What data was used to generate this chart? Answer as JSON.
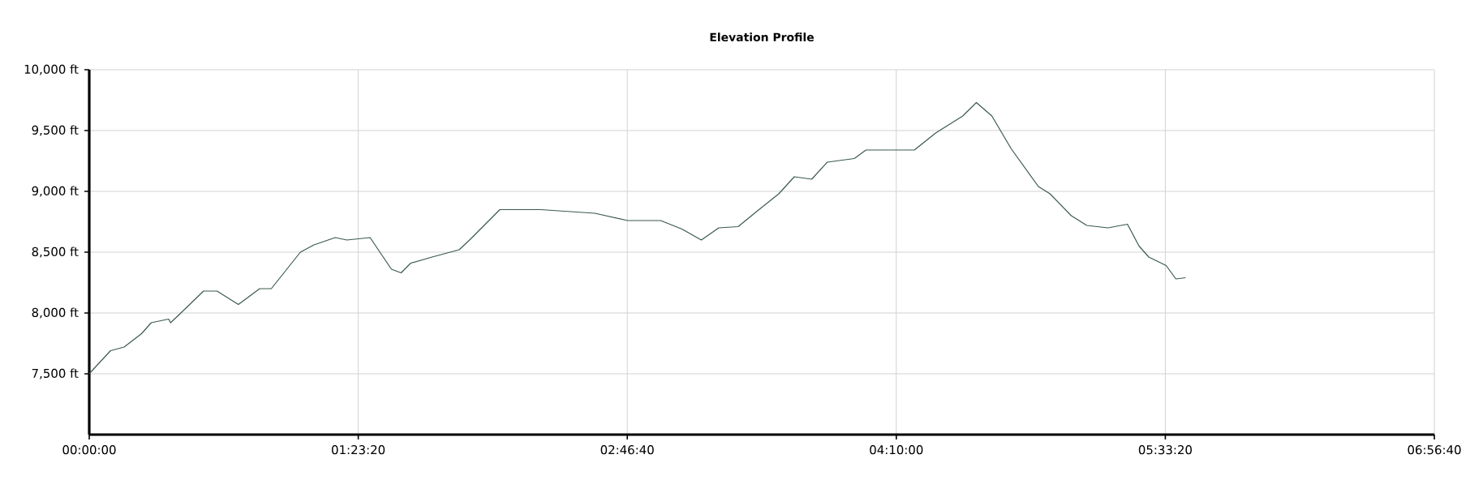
{
  "chart_data": {
    "type": "line",
    "title": "Elevation Profile",
    "x": [
      0,
      0.04,
      0.11,
      0.18,
      0.27,
      0.32,
      0.41,
      0.42,
      0.46,
      0.59,
      0.66,
      0.77,
      0.88,
      0.94,
      1.09,
      1.16,
      1.27,
      1.33,
      1.45,
      1.56,
      1.61,
      1.66,
      1.77,
      1.91,
      1.97,
      2.12,
      2.22,
      2.33,
      2.61,
      2.78,
      2.95,
      3.06,
      3.16,
      3.25,
      3.35,
      3.45,
      3.56,
      3.64,
      3.73,
      3.81,
      3.95,
      4.01,
      4.26,
      4.37,
      4.51,
      4.58,
      4.66,
      4.76,
      4.9,
      4.96,
      5.07,
      5.15,
      5.26,
      5.36,
      5.42,
      5.47,
      5.56,
      5.61,
      5.66
    ],
    "series": [
      {
        "color": "#3a5a4a",
        "values": [
          7500,
          7570,
          7690,
          7720,
          7830,
          7920,
          7950,
          7920,
          7980,
          8180,
          8180,
          8070,
          8200,
          8200,
          8500,
          8560,
          8620,
          8600,
          8620,
          8360,
          8330,
          8410,
          8460,
          8520,
          8610,
          8850,
          8850,
          8850,
          8820,
          8760,
          8760,
          8690,
          8600,
          8700,
          8710,
          8840,
          8980,
          9120,
          9100,
          9240,
          9270,
          9340,
          9340,
          9480,
          9620,
          9730,
          9620,
          9350,
          9040,
          8980,
          8800,
          8720,
          8700,
          8730,
          8550,
          8460,
          8390,
          8280,
          8290
        ]
      }
    ],
    "xlim": [
      0,
      6.94444
    ],
    "xticks": [
      {
        "value": 0,
        "label": "00:00:00"
      },
      {
        "value": 1.38889,
        "label": "01:23:20"
      },
      {
        "value": 2.77778,
        "label": "02:46:40"
      },
      {
        "value": 4.16667,
        "label": "04:10:00"
      },
      {
        "value": 5.55556,
        "label": "05:33:20"
      },
      {
        "value": 6.94444,
        "label": "06:56:40"
      }
    ],
    "ylim": [
      7000,
      10000
    ],
    "yticks": [
      {
        "value": 7500,
        "label": "7,500 ft"
      },
      {
        "value": 8000,
        "label": "8,000 ft"
      },
      {
        "value": 8500,
        "label": "8,500 ft"
      },
      {
        "value": 9000,
        "label": "9,000 ft"
      },
      {
        "value": 9500,
        "label": "9,500 ft"
      },
      {
        "value": 10000,
        "label": "10,000 ft"
      }
    ],
    "grid": true,
    "legend": false,
    "marker": "none",
    "line_style": "solid"
  }
}
